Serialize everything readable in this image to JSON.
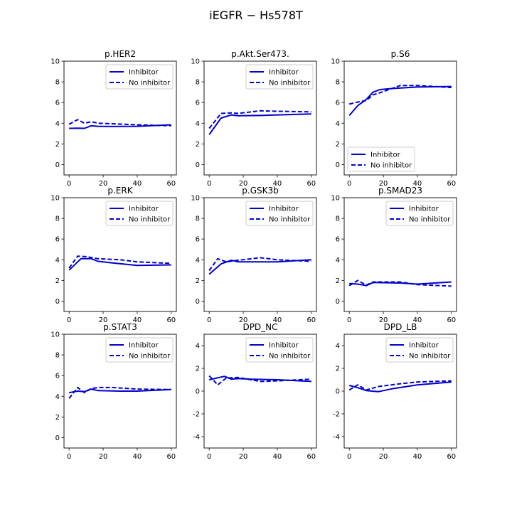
{
  "figure": {
    "title": "iEGFR − Hs578T"
  },
  "legend_labels": {
    "solid": "Inhibitor",
    "dashed": "No inhibitor"
  },
  "colors": {
    "line": "#0000cc",
    "axis": "#000000",
    "background": "#ffffff",
    "legend_border": "#cccccc"
  },
  "chart_data": [
    {
      "type": "line",
      "title": "p.HER2",
      "xlim": [
        -3,
        63
      ],
      "ylim": [
        -1,
        10
      ],
      "xticks": [
        0,
        20,
        40,
        60
      ],
      "yticks": [
        0,
        2,
        4,
        6,
        8,
        10
      ],
      "legend_loc": "upper right",
      "grid": false,
      "series": [
        {
          "name": "Inhibitor",
          "style": "solid",
          "x": [
            0,
            5,
            9,
            13,
            17,
            25,
            40,
            60
          ],
          "y": [
            3.5,
            3.52,
            3.5,
            3.75,
            3.7,
            3.68,
            3.7,
            3.85
          ]
        },
        {
          "name": "No inhibitor",
          "style": "dashed",
          "x": [
            0,
            5,
            9,
            13,
            17,
            25,
            40,
            60
          ],
          "y": [
            3.9,
            4.35,
            4.0,
            4.15,
            4.0,
            3.95,
            3.85,
            3.75
          ]
        }
      ]
    },
    {
      "type": "line",
      "title": "p.Akt.Ser473.",
      "xlim": [
        -3,
        63
      ],
      "ylim": [
        -1,
        10
      ],
      "xticks": [
        0,
        20,
        40,
        60
      ],
      "yticks": [
        0,
        2,
        4,
        6,
        8,
        10
      ],
      "legend_loc": "upper right",
      "grid": false,
      "series": [
        {
          "name": "Inhibitor",
          "style": "solid",
          "x": [
            0,
            7,
            13,
            17,
            30,
            40,
            60
          ],
          "y": [
            2.9,
            4.5,
            4.8,
            4.72,
            4.75,
            4.8,
            4.9
          ]
        },
        {
          "name": "No inhibitor",
          "style": "dashed",
          "x": [
            0,
            7,
            13,
            17,
            30,
            40,
            60
          ],
          "y": [
            3.5,
            4.95,
            5.0,
            4.95,
            5.2,
            5.15,
            5.1
          ]
        }
      ]
    },
    {
      "type": "line",
      "title": "p.S6",
      "xlim": [
        -3,
        63
      ],
      "ylim": [
        -1,
        10
      ],
      "xticks": [
        0,
        20,
        40,
        60
      ],
      "yticks": [
        0,
        2,
        4,
        6,
        8,
        10
      ],
      "legend_loc": "lower left",
      "grid": false,
      "series": [
        {
          "name": "Inhibitor",
          "style": "solid",
          "x": [
            0,
            5,
            10,
            14,
            18,
            25,
            40,
            60
          ],
          "y": [
            4.75,
            5.7,
            6.3,
            7.0,
            7.25,
            7.35,
            7.5,
            7.55
          ]
        },
        {
          "name": "No inhibitor",
          "style": "dashed",
          "x": [
            0,
            5,
            10,
            14,
            18,
            30,
            40,
            60
          ],
          "y": [
            5.85,
            6.05,
            6.2,
            6.75,
            6.95,
            7.65,
            7.65,
            7.45
          ]
        }
      ]
    },
    {
      "type": "line",
      "title": "p.ERK",
      "xlim": [
        -3,
        63
      ],
      "ylim": [
        -1,
        10
      ],
      "xticks": [
        0,
        20,
        40,
        60
      ],
      "yticks": [
        0,
        2,
        4,
        6,
        8,
        10
      ],
      "legend_loc": "upper right",
      "grid": false,
      "series": [
        {
          "name": "Inhibitor",
          "style": "solid",
          "x": [
            0,
            7,
            13,
            17,
            25,
            40,
            60
          ],
          "y": [
            3.0,
            4.1,
            4.1,
            3.85,
            3.7,
            3.45,
            3.5
          ]
        },
        {
          "name": "No inhibitor",
          "style": "dashed",
          "x": [
            0,
            5,
            10,
            17,
            30,
            40,
            60
          ],
          "y": [
            3.2,
            4.35,
            4.3,
            4.1,
            4.0,
            3.8,
            3.65
          ]
        }
      ]
    },
    {
      "type": "line",
      "title": "p.GSK3b",
      "xlim": [
        -3,
        63
      ],
      "ylim": [
        -1,
        10
      ],
      "xticks": [
        0,
        20,
        40,
        60
      ],
      "yticks": [
        0,
        2,
        4,
        6,
        8,
        10
      ],
      "legend_loc": "upper right",
      "grid": false,
      "series": [
        {
          "name": "Inhibitor",
          "style": "solid",
          "x": [
            0,
            7,
            13,
            17,
            25,
            40,
            60
          ],
          "y": [
            2.6,
            3.6,
            3.95,
            3.8,
            3.8,
            3.8,
            4.0
          ]
        },
        {
          "name": "No inhibitor",
          "style": "dashed",
          "x": [
            0,
            5,
            10,
            17,
            30,
            40,
            60
          ],
          "y": [
            2.95,
            4.1,
            3.8,
            3.95,
            4.2,
            4.0,
            3.85
          ]
        }
      ]
    },
    {
      "type": "line",
      "title": "p.SMAD23",
      "xlim": [
        -3,
        63
      ],
      "ylim": [
        -1,
        10
      ],
      "xticks": [
        0,
        20,
        40,
        60
      ],
      "yticks": [
        0,
        2,
        4,
        6,
        8,
        10
      ],
      "legend_loc": "upper right",
      "grid": false,
      "series": [
        {
          "name": "Inhibitor",
          "style": "solid",
          "x": [
            0,
            5,
            10,
            14,
            30,
            40,
            60
          ],
          "y": [
            1.7,
            1.65,
            1.5,
            1.8,
            1.75,
            1.65,
            1.85
          ]
        },
        {
          "name": "No inhibitor",
          "style": "dashed",
          "x": [
            0,
            5,
            10,
            14,
            30,
            40,
            60
          ],
          "y": [
            1.5,
            2.0,
            1.55,
            1.85,
            1.85,
            1.6,
            1.45
          ]
        }
      ]
    },
    {
      "type": "line",
      "title": "p.STAT3",
      "xlim": [
        -3,
        63
      ],
      "ylim": [
        -1,
        10
      ],
      "xticks": [
        0,
        20,
        40,
        60
      ],
      "yticks": [
        0,
        2,
        4,
        6,
        8,
        10
      ],
      "legend_loc": "upper right",
      "grid": false,
      "series": [
        {
          "name": "Inhibitor",
          "style": "solid",
          "x": [
            0,
            5,
            9,
            13,
            17,
            30,
            40,
            60
          ],
          "y": [
            4.35,
            4.5,
            4.45,
            4.7,
            4.55,
            4.5,
            4.5,
            4.65
          ]
        },
        {
          "name": "No inhibitor",
          "style": "dashed",
          "x": [
            0,
            5,
            9,
            13,
            17,
            25,
            40,
            60
          ],
          "y": [
            3.8,
            4.85,
            4.35,
            4.75,
            4.85,
            4.85,
            4.7,
            4.65
          ]
        }
      ]
    },
    {
      "type": "line",
      "title": "DPD_NC",
      "xlim": [
        -3,
        63
      ],
      "ylim": [
        -5,
        5
      ],
      "xticks": [
        0,
        20,
        40,
        60
      ],
      "yticks": [
        -4,
        -2,
        0,
        2,
        4
      ],
      "legend_loc": "upper right",
      "grid": false,
      "series": [
        {
          "name": "Inhibitor",
          "style": "solid",
          "x": [
            0,
            9,
            13,
            17,
            25,
            40,
            60
          ],
          "y": [
            1.0,
            1.3,
            1.05,
            1.1,
            1.05,
            1.0,
            0.85
          ]
        },
        {
          "name": "No inhibitor",
          "style": "dashed",
          "x": [
            0,
            5,
            10,
            17,
            30,
            40,
            60
          ],
          "y": [
            1.35,
            0.55,
            1.15,
            1.2,
            0.85,
            0.9,
            1.05
          ]
        }
      ]
    },
    {
      "type": "line",
      "title": "DPD_LB",
      "xlim": [
        -3,
        63
      ],
      "ylim": [
        -5,
        5
      ],
      "xticks": [
        0,
        20,
        40,
        60
      ],
      "yticks": [
        -4,
        -2,
        0,
        2,
        4
      ],
      "legend_loc": "upper right",
      "grid": false,
      "series": [
        {
          "name": "Inhibitor",
          "style": "solid",
          "x": [
            0,
            5,
            10,
            17,
            25,
            40,
            60
          ],
          "y": [
            0.5,
            0.3,
            0.05,
            -0.05,
            0.2,
            0.55,
            0.8
          ]
        },
        {
          "name": "No inhibitor",
          "style": "dashed",
          "x": [
            0,
            5,
            10,
            17,
            30,
            40,
            60
          ],
          "y": [
            0.1,
            0.55,
            0.1,
            0.4,
            0.65,
            0.8,
            0.9
          ]
        }
      ]
    }
  ]
}
